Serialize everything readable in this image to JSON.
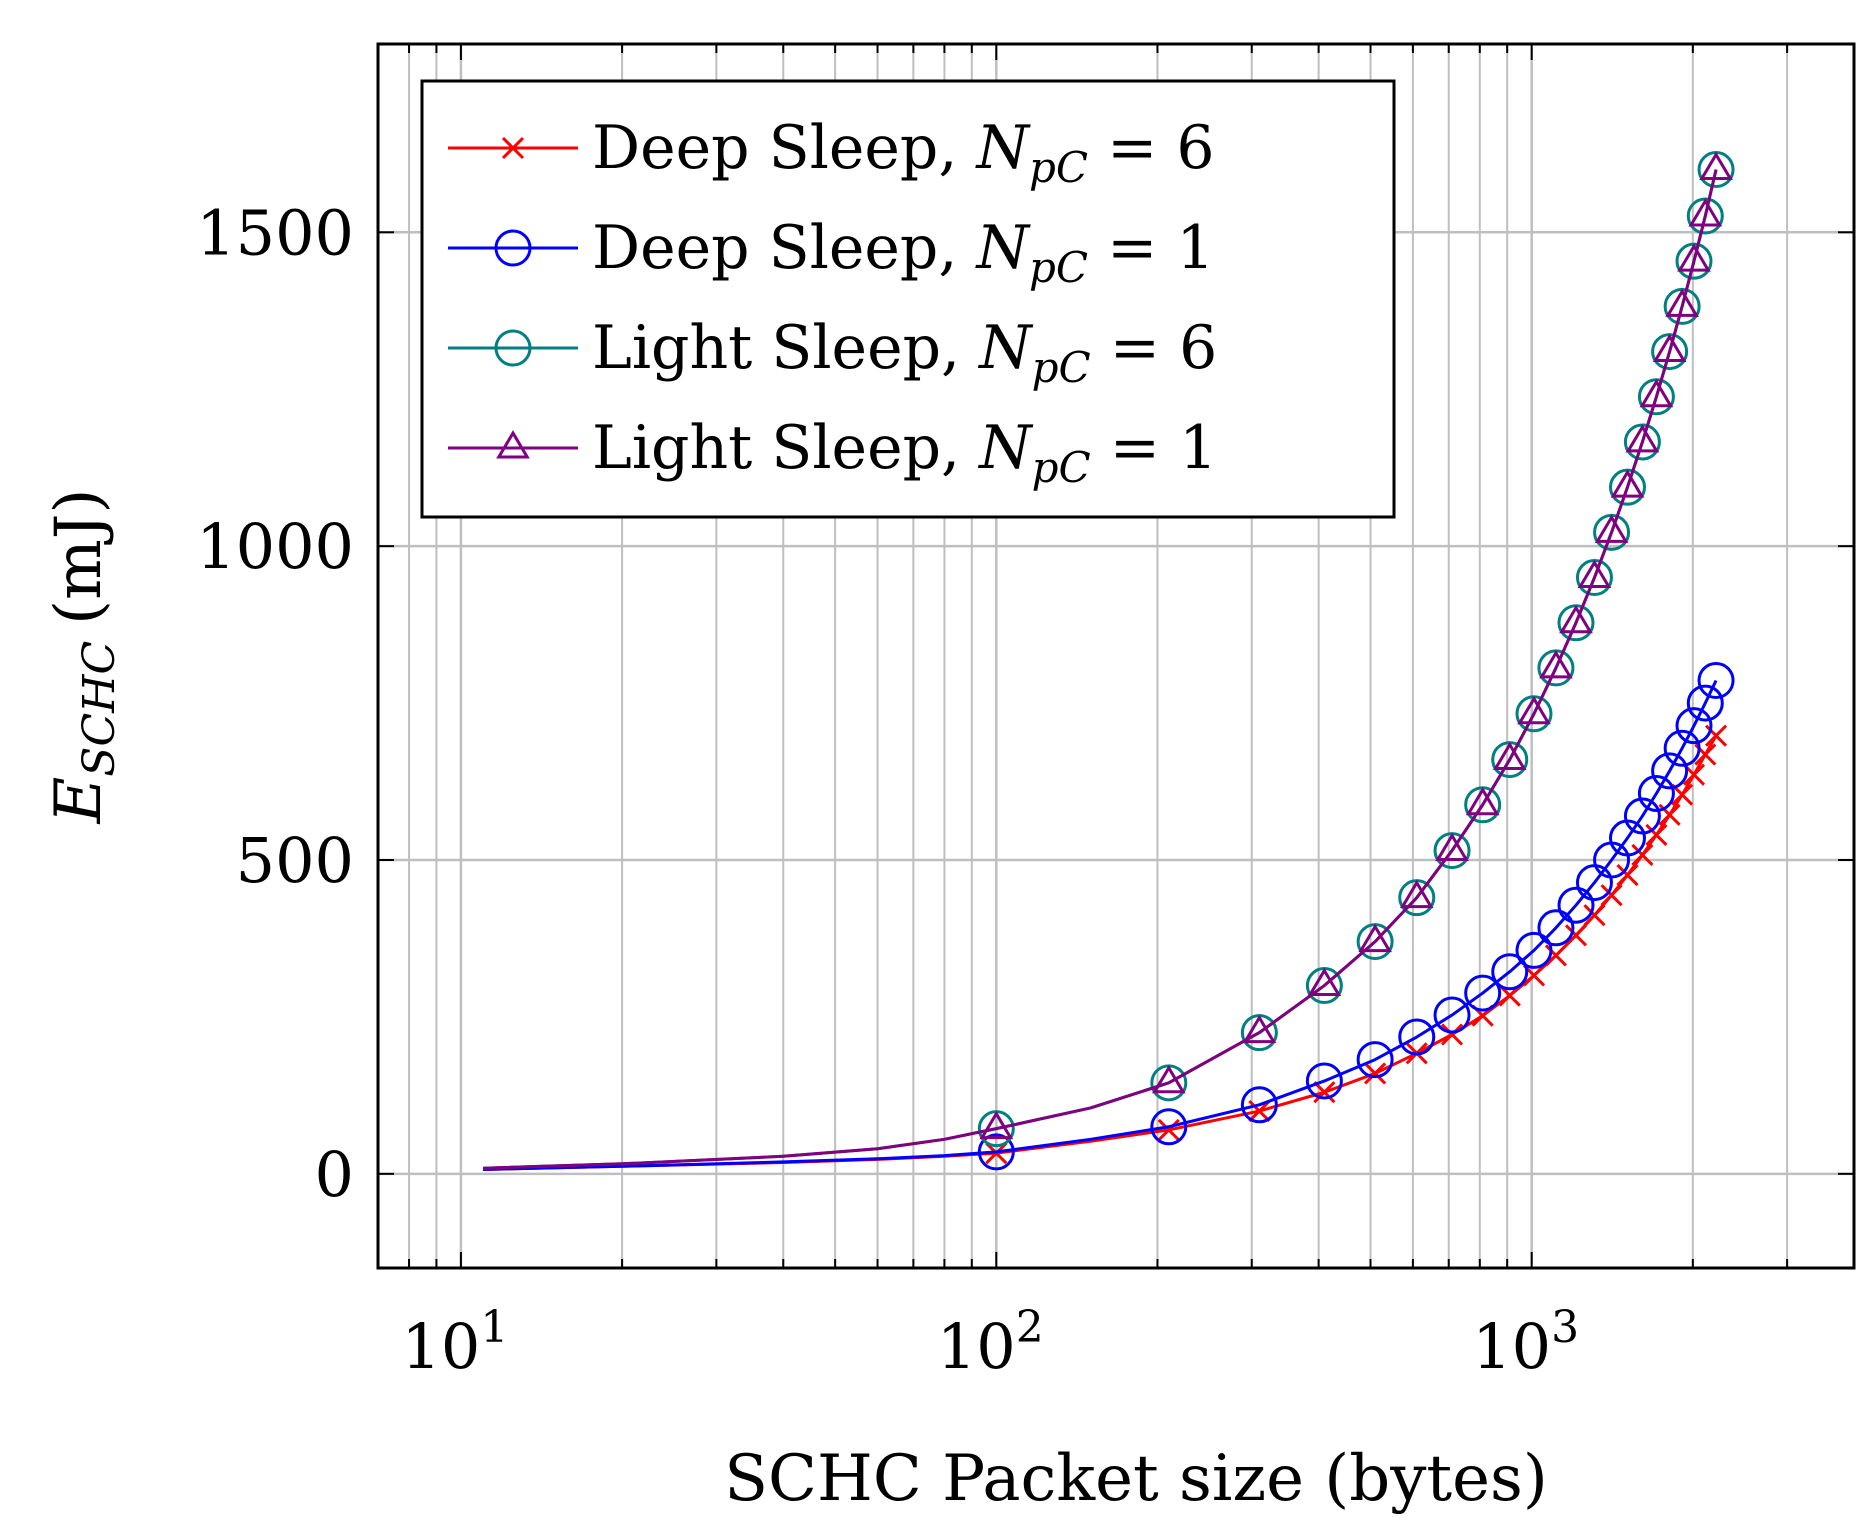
{
  "chart_data": {
    "type": "line",
    "title": "",
    "xlabel": "SCHC Packet size (bytes)",
    "ylabel": "E_SCHC (mJ)",
    "ylabel_parts": {
      "main": "E",
      "sub": "SCHC",
      "unit": "(mJ)"
    },
    "xscale": "log",
    "xlim": [
      7,
      4000
    ],
    "ylim": [
      -150,
      1800
    ],
    "grid": true,
    "legend_position": "top-left",
    "x_ticks": [
      {
        "value": 10,
        "base": "10",
        "exp": "1"
      },
      {
        "value": 100,
        "base": "10",
        "exp": "2"
      },
      {
        "value": 1000,
        "base": "10",
        "exp": "3"
      }
    ],
    "y_ticks": [
      0,
      500,
      1000,
      1500
    ],
    "y_tick_labels": [
      "0",
      "500",
      "1000",
      "1500"
    ],
    "series": [
      {
        "name": "Deep Sleep, N_pC = 6",
        "legend_parts": {
          "prefix": "Deep Sleep, ",
          "var": "N",
          "sub": "pC",
          "suffix": " = 6"
        },
        "color": "#ff0000",
        "marker": "x",
        "marker_x": [
          100,
          210,
          310,
          410,
          510,
          610,
          710,
          810,
          910,
          1010,
          1110,
          1210,
          1310,
          1410,
          1510,
          1610,
          1710,
          1810,
          1910,
          2010,
          2110,
          2210
        ],
        "x": [
          11,
          20,
          40,
          60,
          80,
          100,
          150,
          210,
          310,
          410,
          510,
          610,
          710,
          810,
          910,
          1010,
          1110,
          1210,
          1310,
          1410,
          1510,
          1610,
          1710,
          1810,
          1910,
          2010,
          2110,
          2210
        ],
        "y": [
          7,
          12,
          18,
          23,
          28,
          33,
          52,
          70,
          100,
          130,
          160,
          192,
          222,
          252,
          284,
          316,
          348,
          380,
          412,
          444,
          476,
          508,
          540,
          572,
          604,
          636,
          668,
          698
        ]
      },
      {
        "name": "Deep Sleep, N_pC = 1",
        "legend_parts": {
          "prefix": "Deep Sleep, ",
          "var": "N",
          "sub": "pC",
          "suffix": " = 1"
        },
        "color": "#0000ff",
        "marker": "circle",
        "marker_x": [
          100,
          210,
          310,
          410,
          510,
          610,
          710,
          810,
          910,
          1010,
          1110,
          1210,
          1310,
          1410,
          1510,
          1610,
          1710,
          1810,
          1910,
          2010,
          2110,
          2210
        ],
        "x": [
          11,
          20,
          40,
          60,
          80,
          100,
          150,
          210,
          310,
          410,
          510,
          610,
          710,
          810,
          910,
          1010,
          1110,
          1210,
          1310,
          1410,
          1510,
          1610,
          1710,
          1810,
          1910,
          2010,
          2110,
          2210
        ],
        "y": [
          7,
          12,
          19,
          24,
          29,
          35,
          55,
          75,
          110,
          148,
          182,
          218,
          253,
          288,
          322,
          356,
          392,
          428,
          464,
          500,
          535,
          570,
          606,
          642,
          678,
          714,
          750,
          786
        ]
      },
      {
        "name": "Light Sleep, N_pC = 6",
        "legend_parts": {
          "prefix": "Light Sleep, ",
          "var": "N",
          "sub": "pC",
          "suffix": " = 6"
        },
        "color": "#008080",
        "marker": "circle",
        "marker_x": [
          100,
          210,
          310,
          410,
          510,
          610,
          710,
          810,
          910,
          1010,
          1110,
          1210,
          1310,
          1410,
          1510,
          1610,
          1710,
          1810,
          1910,
          2010,
          2110,
          2210
        ],
        "x": [
          11,
          20,
          40,
          60,
          80,
          100,
          150,
          210,
          310,
          410,
          510,
          610,
          710,
          810,
          910,
          1010,
          1110,
          1210,
          1310,
          1410,
          1510,
          1610,
          1710,
          1810,
          1910,
          2010,
          2110,
          2210
        ],
        "y": [
          9,
          16,
          28,
          40,
          55,
          72,
          105,
          145,
          225,
          300,
          370,
          440,
          515,
          588,
          660,
          733,
          806,
          878,
          950,
          1022,
          1094,
          1166,
          1238,
          1310,
          1382,
          1454,
          1526,
          1600
        ]
      },
      {
        "name": "Light Sleep, N_pC = 1",
        "legend_parts": {
          "prefix": "Light Sleep, ",
          "var": "N",
          "sub": "pC",
          "suffix": " = 1"
        },
        "color": "#800080",
        "marker": "triangle",
        "marker_x": [
          100,
          210,
          310,
          410,
          510,
          610,
          710,
          810,
          910,
          1010,
          1110,
          1210,
          1310,
          1410,
          1510,
          1610,
          1710,
          1810,
          1910,
          2010,
          2110,
          2210
        ],
        "x": [
          11,
          20,
          40,
          60,
          80,
          100,
          150,
          210,
          310,
          410,
          510,
          610,
          710,
          810,
          910,
          1010,
          1110,
          1210,
          1310,
          1410,
          1510,
          1610,
          1710,
          1810,
          1910,
          2010,
          2110,
          2210
        ],
        "y": [
          9,
          16,
          28,
          40,
          55,
          72,
          105,
          145,
          225,
          300,
          370,
          440,
          515,
          588,
          660,
          733,
          806,
          878,
          950,
          1022,
          1094,
          1166,
          1238,
          1310,
          1382,
          1454,
          1526,
          1600
        ]
      }
    ]
  }
}
